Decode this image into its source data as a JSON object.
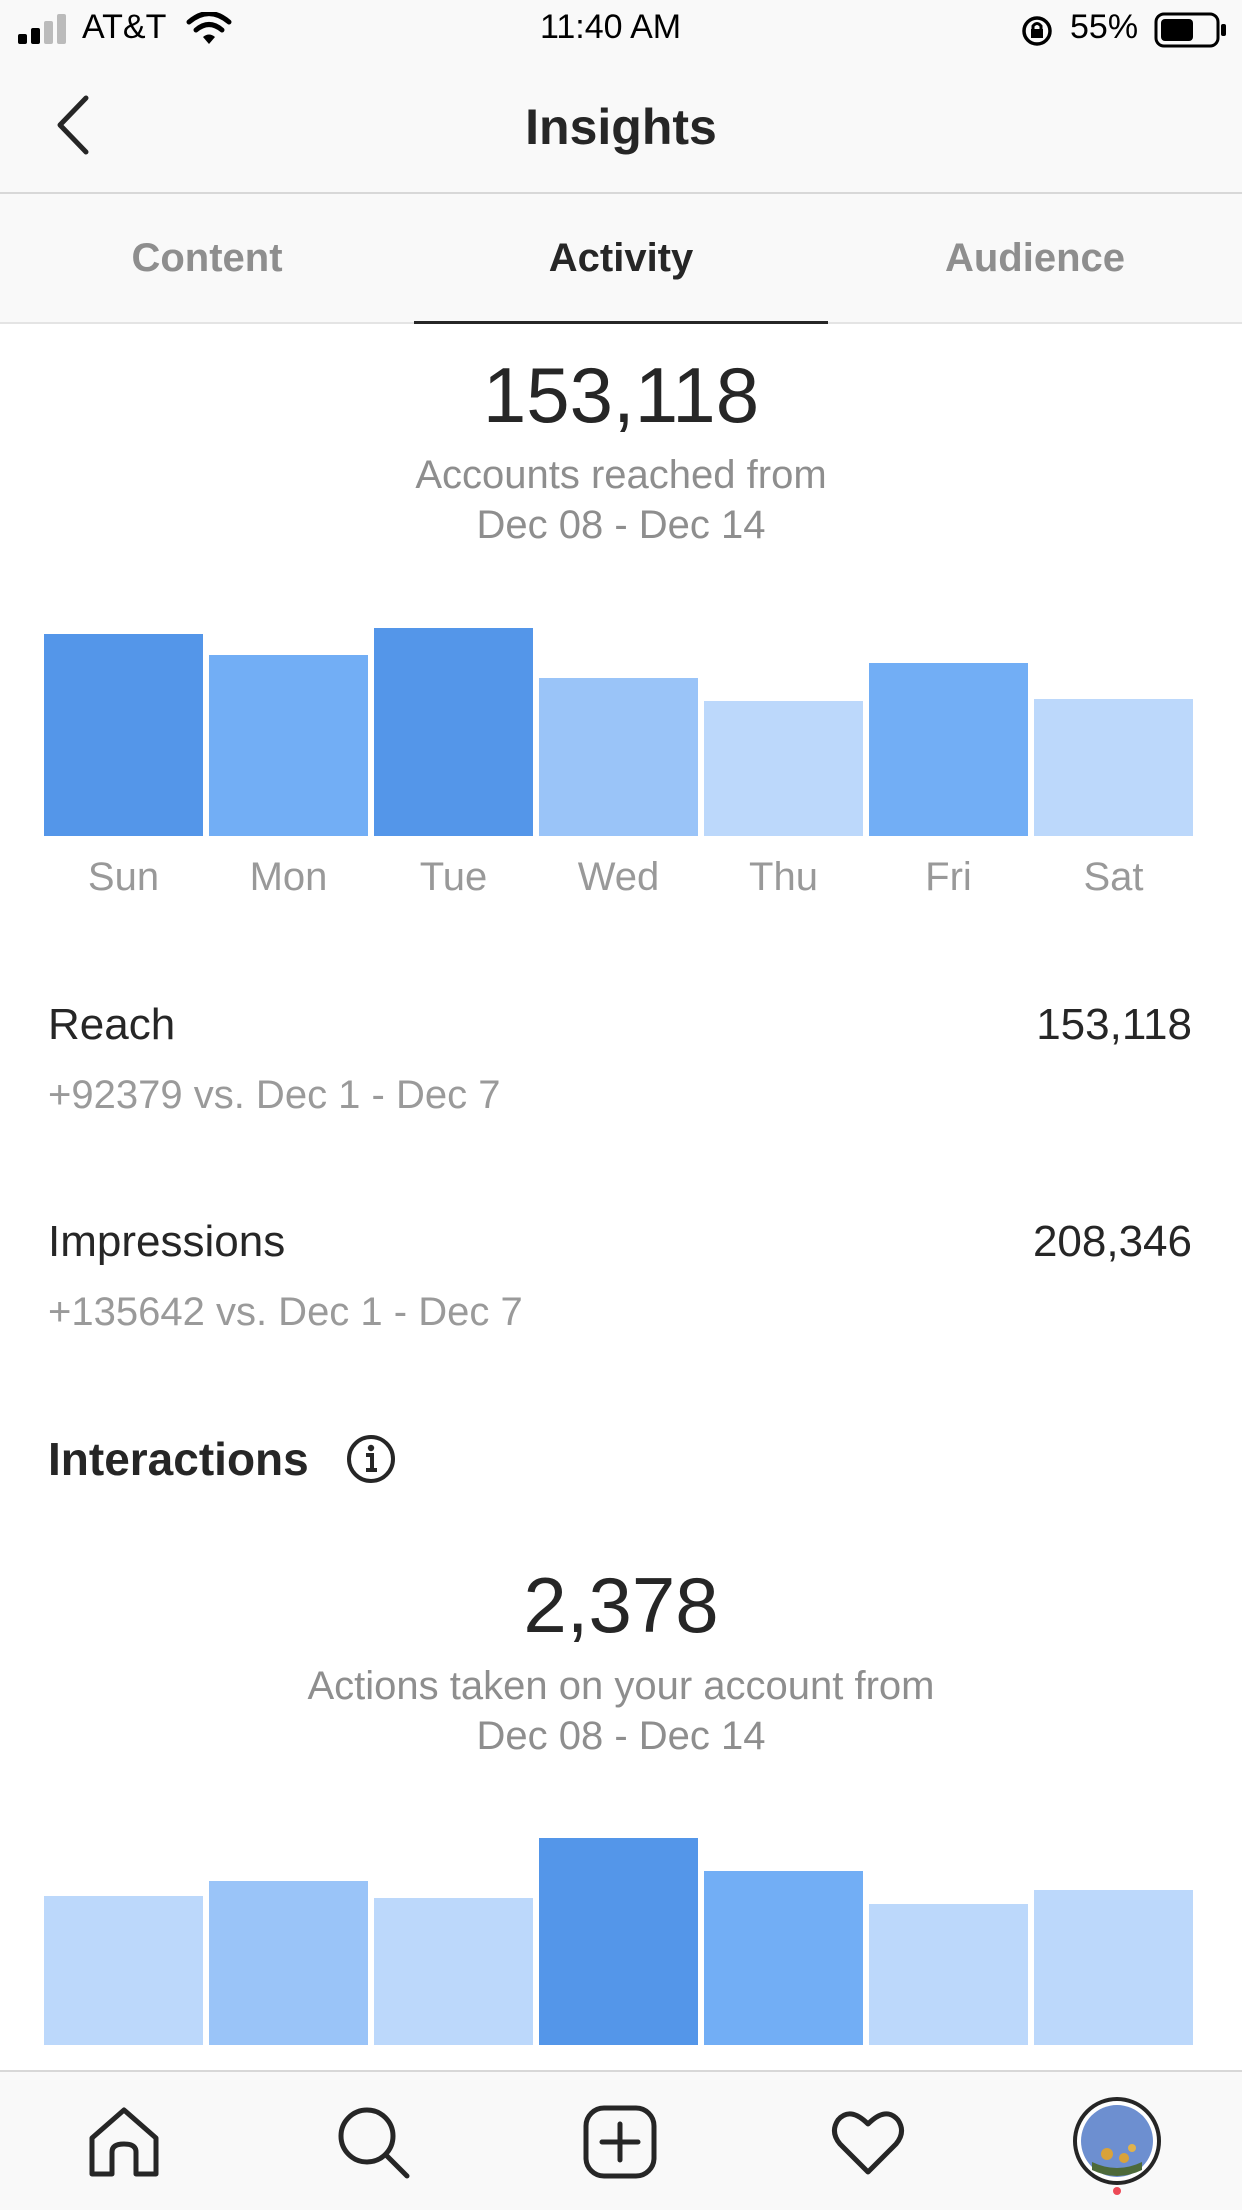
{
  "status_bar": {
    "carrier": "AT&T",
    "time": "11:40 AM",
    "battery": "55%"
  },
  "header": {
    "title": "Insights"
  },
  "tabs": [
    {
      "label": "Content"
    },
    {
      "label": "Activity"
    },
    {
      "label": "Audience"
    }
  ],
  "active_tab": "Activity",
  "reach_summary": {
    "total": "153,118",
    "caption_line1": "Accounts reached from",
    "caption_line2": "Dec 08 - Dec 14"
  },
  "reach_chart": {
    "days": [
      "Sun",
      "Mon",
      "Tue",
      "Wed",
      "Thu",
      "Fri",
      "Sat"
    ],
    "levels": [
      0.97,
      0.87,
      1.0,
      0.76,
      0.65,
      0.83,
      0.66
    ],
    "colors": [
      "#5496e9",
      "#72aef5",
      "#5496e9",
      "#9ac4f8",
      "#bcd8fb",
      "#72aef5",
      "#bcd8fb"
    ]
  },
  "metrics": [
    {
      "label": "Reach",
      "value": "153,118",
      "comparison": "+92379 vs. Dec 1 - Dec 7"
    },
    {
      "label": "Impressions",
      "value": "208,346",
      "comparison": "+135642 vs. Dec 1 - Dec 7"
    }
  ],
  "interactions": {
    "heading": "Interactions",
    "total": "2,378",
    "caption_line1": "Actions taken on your account from",
    "caption_line2": "Dec 08 - Dec 14"
  },
  "interactions_chart": {
    "levels": [
      0.72,
      0.79,
      0.71,
      1.0,
      0.84,
      0.68,
      0.75
    ],
    "colors": [
      "#bcd8fb",
      "#9ac4f8",
      "#bcd8fb",
      "#5496e9",
      "#72aef5",
      "#bcd8fb",
      "#bcd8fb"
    ]
  },
  "tab_bar": {
    "items": [
      "home-icon",
      "search-icon",
      "new-post-icon",
      "activity-heart-icon",
      "profile-avatar"
    ]
  }
}
